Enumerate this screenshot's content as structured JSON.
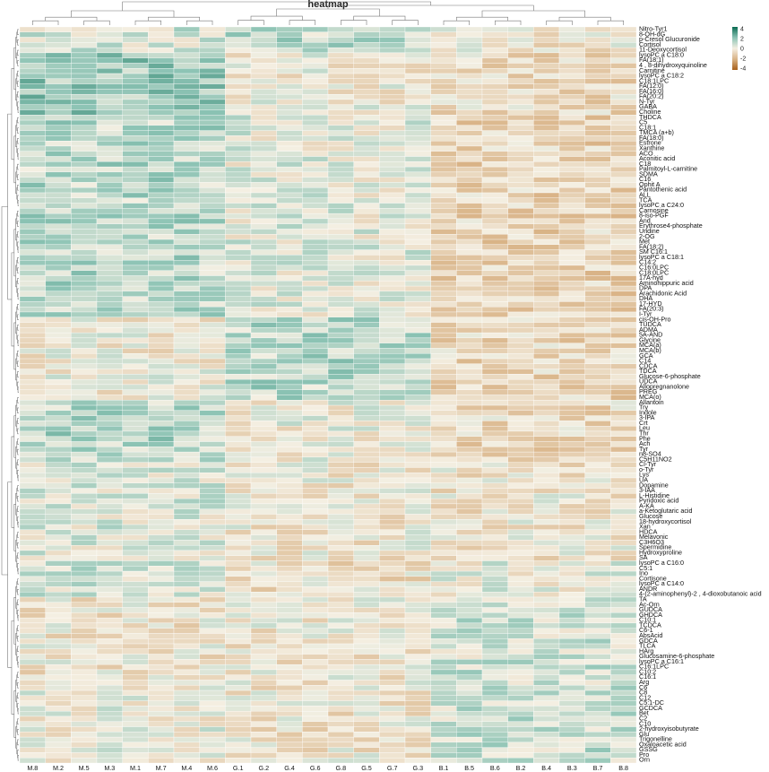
{
  "chart_data": {
    "type": "heatmap",
    "title": "heatmap",
    "columns": [
      "M.8",
      "M.2",
      "M.5",
      "M.3",
      "M.1",
      "M.7",
      "M.4",
      "M.6",
      "G.1",
      "G.2",
      "G.4",
      "G.6",
      "G.8",
      "G.5",
      "G.7",
      "G.3",
      "B.1",
      "B.5",
      "B.6",
      "B.2",
      "B.4",
      "B.3",
      "B.7",
      "B.8"
    ],
    "rows": [
      "Nitro-Tyr1",
      "8-OH-dG",
      "p-Cresol Glucuronide",
      "Cortisol",
      "11-Deoxycortisol",
      "lysoPC a C18:0",
      "FA(18:1)",
      "4 , 8-dihydroxyquinoline",
      "Carnitine",
      "lysoPC a C18:2",
      "C18:1LPC",
      "FA(12:0)",
      "FA(16:0)",
      "FA(20:2)",
      "N-Tyr",
      "GABA",
      "Choline",
      "THDCA",
      "C5",
      "C18:1",
      "TMCA (a+b)",
      "FA(18:0)",
      "Estrone",
      "Xanthine",
      "ACO",
      "Aconitic acid",
      "C18",
      "Palmitoyl-L-carnitine",
      "SDMA",
      "C16",
      "Ophit A",
      "Pantothenic acid",
      "ALL",
      "TCA",
      "lysoPC a C24:0",
      "Carnosine",
      "8-iso-PGF",
      "And",
      "Erythrose4-phosphate",
      "Uridine",
      "2-OG",
      "Met",
      "FA(18:2)",
      "SM C16:1",
      "lysoPC a C18:1",
      "C14:2",
      "C16:0LPC",
      "C18:0LPC",
      "17A-hyd",
      "Aminohippuric acid",
      "DPA",
      "Arachidonic Acid",
      "DHA",
      "17-HYD",
      "FA(20:3)",
      "I-Tyr",
      "cis-OH-Pro",
      "TUDCA",
      "ADMA",
      "5A-AND",
      "Glycine",
      "MCA(a)",
      "MCA(b)",
      "GCA",
      "C14",
      "CDCA",
      "TDCA",
      "Glucose-6-phosphate",
      "UDCA",
      "Allopregnanolone",
      "PREG",
      "MCA(o)",
      "Allantoin",
      "Try",
      "Indole",
      "3-IPA",
      "Crt",
      "Leu",
      "Thr",
      "Phe",
      "Ach",
      "Tyr",
      "n8-SO4",
      "C5H11NO2",
      "Cl-Tyr",
      "o-Tyr",
      "Lys",
      "UA",
      "Dopamine",
      "3-IAA",
      "L-Histidine",
      "Pyridoxic acid",
      "A-KA",
      "a-Ketoglutaric acid",
      "Glucose",
      "18-hydroxycortisol",
      "Xan",
      "HDCA",
      "Melavonic",
      "C3H6O3",
      "Spermidine",
      "Hydroxyproline",
      "SA",
      "lysoPC a C16:0",
      "C5:1",
      "Ino",
      "Cortisone",
      "lysoPC a C14:0",
      "ANDR",
      "4-(2-aminophenyl)-2 , 4-dioxobutanoic acid",
      "TA",
      "Ac-Orn",
      "GUDCA",
      "GHDCA",
      "C10:1",
      "TCDCA",
      "C6-1",
      "AbsAcid",
      "GDCA",
      "TLCA",
      "HArg",
      "Glucosamine-6-phosphate",
      "lysoPC a C16:1",
      "C16:1LPC",
      "C10:2",
      "C16:1",
      "Arg",
      "C6",
      "C8",
      "C12",
      "C5:1-DC",
      "GCDCA",
      "Bet",
      "C2",
      "C10",
      "2-hydroxyisobutyrate",
      "Glu",
      "Trigonelline",
      "Oxaloacetic acid",
      "GSSG",
      "Pro",
      "Orn"
    ],
    "groups": [
      {
        "name": "M",
        "columns": [
          "M.8",
          "M.2",
          "M.5",
          "M.3",
          "M.1",
          "M.7",
          "M.4",
          "M.6"
        ]
      },
      {
        "name": "G",
        "columns": [
          "G.1",
          "G.2",
          "G.4",
          "G.6",
          "G.8",
          "G.5",
          "G.7",
          "G.3"
        ]
      },
      {
        "name": "B",
        "columns": [
          "B.1",
          "B.5",
          "B.6",
          "B.2",
          "B.4",
          "B.3",
          "B.7",
          "B.8"
        ]
      }
    ],
    "cluster_means": [
      {
        "rows": [
          0,
          5
        ],
        "M": 0.6,
        "G": 1.0,
        "B": -0.3
      },
      {
        "rows": [
          5,
          17
        ],
        "M": 1.6,
        "G": -0.1,
        "B": -0.7
      },
      {
        "rows": [
          17,
          56
        ],
        "M": 1.1,
        "G": 0.3,
        "B": -0.9
      },
      {
        "rows": [
          56,
          72
        ],
        "M": -0.1,
        "G": 1.1,
        "B": -0.8
      },
      {
        "rows": [
          72,
          84
        ],
        "M": 1.2,
        "G": 0.0,
        "B": -0.7
      },
      {
        "rows": [
          84,
          103
        ],
        "M": 0.4,
        "G": -0.2,
        "B": -0.3
      },
      {
        "rows": [
          103,
          110
        ],
        "M": 0.6,
        "G": -0.5,
        "B": 0.2
      },
      {
        "rows": [
          110,
          127
        ],
        "M": -0.3,
        "G": -0.2,
        "B": 0.7
      },
      {
        "rows": [
          127,
          143
        ],
        "M": 0.1,
        "G": -0.3,
        "B": 0.8
      }
    ],
    "color_scale": {
      "min": -4,
      "max": 4,
      "stops": [
        {
          "value": -4,
          "color": "#a8601a"
        },
        {
          "value": -2,
          "color": "#d9b386"
        },
        {
          "value": 0,
          "color": "#f4efe2"
        },
        {
          "value": 2,
          "color": "#8cc3b4"
        },
        {
          "value": 4,
          "color": "#0a6b52"
        }
      ],
      "ticks": [
        4,
        2,
        0,
        -2,
        -4
      ]
    },
    "legend_position": "top-right",
    "grid": true
  }
}
